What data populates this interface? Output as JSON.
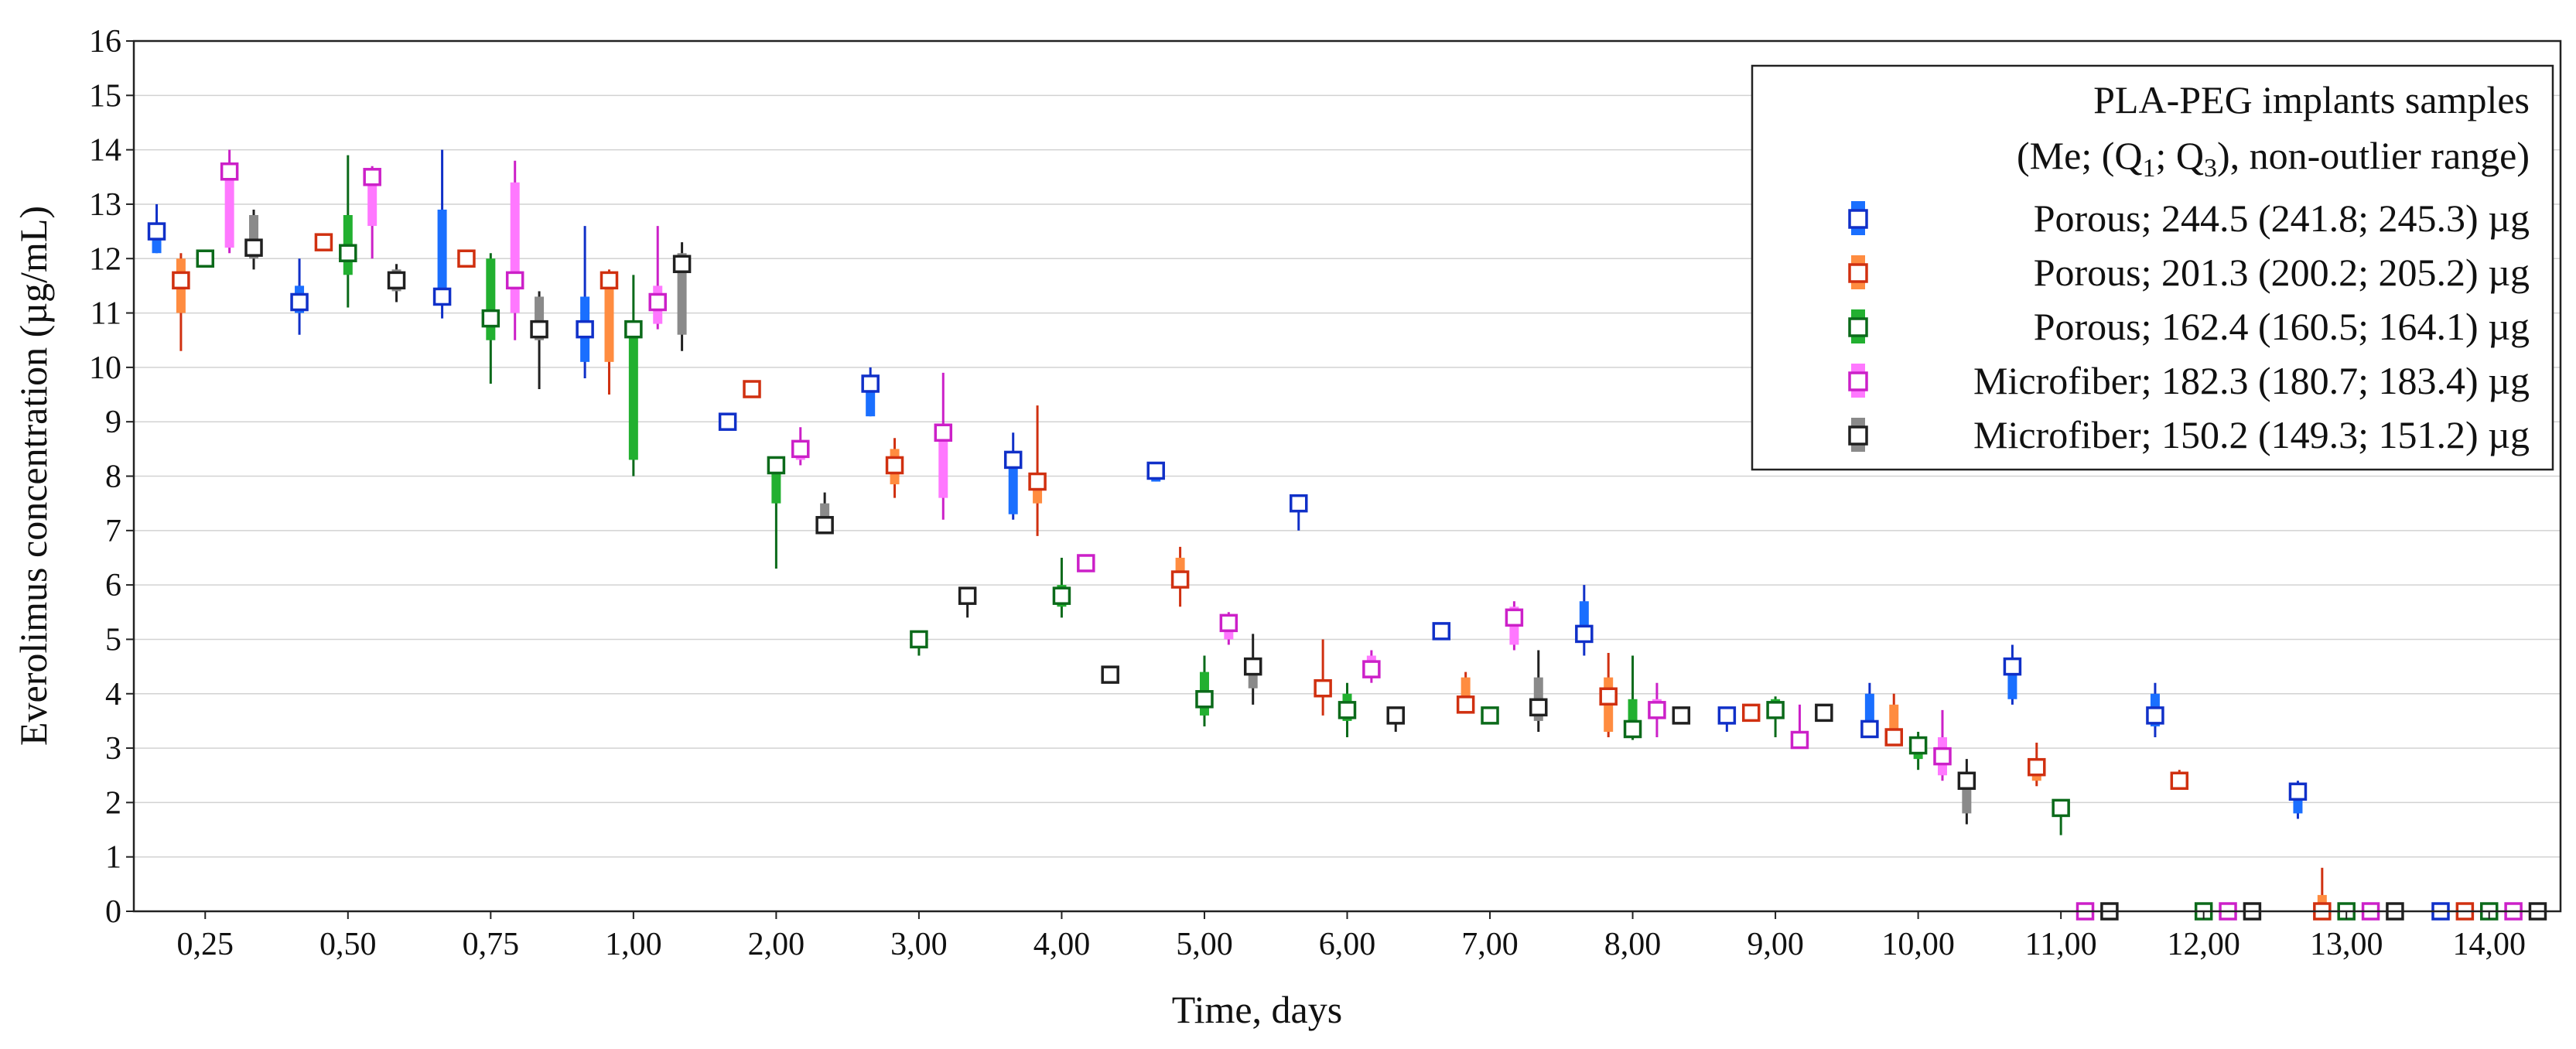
{
  "chart_data": {
    "type": "box",
    "title": "",
    "xlabel": "Time, days",
    "ylabel": "Everolimus concentration (µg/mL)",
    "ylim": [
      0,
      16
    ],
    "yticks": [
      0,
      1,
      2,
      3,
      4,
      5,
      6,
      7,
      8,
      9,
      10,
      11,
      12,
      13,
      14,
      15,
      16
    ],
    "grid": "horizontal",
    "categories": [
      "0,25",
      "0,50",
      "0,75",
      "1,00",
      "2,00",
      "3,00",
      "4,00",
      "5,00",
      "6,00",
      "7,00",
      "8,00",
      "9,00",
      "10,00",
      "11,00",
      "12,00",
      "13,00",
      "14,00"
    ],
    "legend": {
      "placement": "top-right",
      "title_line1": "PLA-PEG implants samples",
      "title_line2_prefix": "(Me; (Q",
      "title_line2_sub1": "1",
      "title_line2_mid": "; Q",
      "title_line2_sub2": "3",
      "title_line2_suffix": "), non-outlier range)"
    },
    "series": [
      {
        "name": "Porous; 244.5 (241.8; 245.3) µg",
        "edge": "#1030c8",
        "fill": "#1a6fff",
        "values": [
          [
            12.5,
            12.1,
            12.6,
            12.1,
            13.0
          ],
          [
            11.2,
            11.0,
            11.5,
            10.6,
            12.0
          ],
          [
            11.3,
            11.3,
            12.9,
            10.9,
            14.0
          ],
          [
            10.7,
            10.1,
            11.3,
            9.8,
            12.6
          ],
          [
            9.0,
            9.0,
            9.0,
            9.0,
            9.0
          ],
          [
            9.7,
            9.1,
            9.7,
            9.1,
            10.0
          ],
          [
            8.3,
            7.3,
            8.3,
            7.2,
            8.8
          ],
          [
            8.1,
            7.9,
            8.1,
            7.9,
            8.2
          ],
          [
            7.5,
            7.4,
            7.5,
            7.0,
            7.6
          ],
          [
            5.15,
            5.1,
            5.25,
            5.1,
            5.3
          ],
          [
            5.1,
            5.1,
            5.7,
            4.7,
            6.0
          ],
          [
            3.6,
            3.5,
            3.7,
            3.3,
            3.75
          ],
          [
            3.35,
            3.3,
            4.0,
            3.2,
            4.2
          ],
          [
            4.5,
            3.9,
            4.5,
            3.8,
            4.9
          ],
          [
            3.6,
            3.4,
            4.0,
            3.2,
            4.2
          ],
          [
            2.2,
            1.8,
            2.3,
            1.7,
            2.4
          ],
          [
            0,
            0,
            0,
            0,
            0
          ]
        ]
      },
      {
        "name": "Porous; 201.3 (200.2; 205.2) µg",
        "edge": "#d03010",
        "fill": "#ff8c40",
        "values": [
          [
            11.6,
            11.0,
            12.0,
            10.3,
            12.1
          ],
          [
            12.3,
            12.2,
            12.3,
            12.2,
            12.3
          ],
          [
            12.0,
            12.0,
            12.0,
            12.0,
            12.0
          ],
          [
            11.6,
            10.1,
            11.7,
            9.5,
            11.8
          ],
          [
            9.6,
            9.55,
            9.65,
            9.5,
            9.7
          ],
          [
            8.2,
            7.85,
            8.5,
            7.6,
            8.7
          ],
          [
            7.9,
            7.5,
            8.0,
            6.9,
            9.3
          ],
          [
            6.1,
            6.0,
            6.5,
            5.6,
            6.7
          ],
          [
            4.1,
            4.0,
            4.2,
            3.6,
            5.0
          ],
          [
            3.8,
            3.75,
            4.3,
            3.7,
            4.4
          ],
          [
            3.95,
            3.3,
            4.3,
            3.2,
            4.75
          ],
          [
            3.65,
            3.6,
            3.75,
            3.6,
            3.75
          ],
          [
            3.2,
            3.2,
            3.8,
            3.1,
            4.0
          ],
          [
            2.65,
            2.4,
            2.8,
            2.3,
            3.1
          ],
          [
            2.4,
            2.35,
            2.5,
            2.3,
            2.6
          ],
          [
            0,
            0,
            0.3,
            0,
            0.8
          ],
          [
            0,
            0,
            0,
            0,
            0
          ]
        ]
      },
      {
        "name": "Porous; 162.4 (160.5; 164.1) µg",
        "edge": "#0b6a1a",
        "fill": "#22b030",
        "values": [
          [
            12.0,
            12.0,
            12.05,
            12.0,
            12.1
          ],
          [
            12.1,
            11.7,
            12.8,
            11.1,
            13.9
          ],
          [
            10.9,
            10.5,
            12.0,
            9.7,
            12.1
          ],
          [
            10.7,
            8.3,
            10.7,
            8.0,
            11.7
          ],
          [
            8.2,
            7.5,
            8.3,
            6.3,
            8.3
          ],
          [
            5.0,
            4.85,
            5.0,
            4.7,
            5.1
          ],
          [
            5.8,
            5.6,
            6.0,
            5.4,
            6.5
          ],
          [
            3.9,
            3.6,
            4.4,
            3.4,
            4.7
          ],
          [
            3.7,
            3.5,
            4.0,
            3.2,
            4.2
          ],
          [
            3.6,
            3.55,
            3.7,
            3.5,
            3.7
          ],
          [
            3.35,
            3.3,
            3.9,
            3.15,
            4.7
          ],
          [
            3.7,
            3.6,
            3.9,
            3.2,
            3.95
          ],
          [
            3.05,
            2.8,
            3.2,
            2.6,
            3.3
          ],
          [
            1.9,
            1.85,
            2.0,
            1.4,
            2.0
          ],
          [
            0,
            0,
            0,
            0,
            0
          ],
          [
            0,
            0,
            0,
            0,
            0
          ],
          [
            0,
            0,
            0,
            0,
            0
          ]
        ]
      },
      {
        "name": "Microfiber; 182.3 (180.7; 183.4) µg",
        "edge": "#cc20c8",
        "fill": "#ff78ff",
        "values": [
          [
            13.6,
            12.2,
            13.7,
            12.1,
            14.0
          ],
          [
            13.5,
            12.6,
            13.6,
            12.0,
            13.7
          ],
          [
            11.6,
            11.0,
            13.4,
            10.5,
            13.8
          ],
          [
            11.2,
            10.8,
            11.5,
            10.7,
            12.6
          ],
          [
            8.5,
            8.3,
            8.6,
            8.2,
            8.9
          ],
          [
            8.8,
            7.6,
            8.8,
            7.2,
            9.9
          ],
          [
            6.4,
            6.4,
            6.4,
            6.4,
            6.4
          ],
          [
            5.3,
            5.0,
            5.4,
            4.9,
            5.5
          ],
          [
            4.45,
            4.3,
            4.7,
            4.2,
            4.8
          ],
          [
            5.4,
            4.9,
            5.6,
            4.8,
            5.7
          ],
          [
            3.7,
            3.6,
            3.9,
            3.2,
            4.2
          ],
          [
            3.15,
            3.1,
            3.3,
            3.05,
            3.8
          ],
          [
            2.85,
            2.5,
            3.2,
            2.4,
            3.7
          ],
          [
            0,
            0,
            0,
            0,
            0
          ],
          [
            0,
            0,
            0,
            0,
            0
          ],
          [
            0,
            0,
            0,
            0,
            0
          ],
          [
            0,
            0,
            0,
            0,
            0
          ]
        ]
      },
      {
        "name": "Microfiber; 150.2 (149.3; 151.2) µg",
        "edge": "#202020",
        "fill": "#8a8a8a",
        "values": [
          [
            12.2,
            12.0,
            12.8,
            11.8,
            12.9
          ],
          [
            11.6,
            11.4,
            11.8,
            11.2,
            11.9
          ],
          [
            10.7,
            10.5,
            11.3,
            9.6,
            11.4
          ],
          [
            11.9,
            10.6,
            12.1,
            10.3,
            12.3
          ],
          [
            7.1,
            7.05,
            7.5,
            7.0,
            7.7
          ],
          [
            5.8,
            5.7,
            5.9,
            5.4,
            5.9
          ],
          [
            4.35,
            4.3,
            4.4,
            4.3,
            4.4
          ],
          [
            4.5,
            4.1,
            4.6,
            3.8,
            5.1
          ],
          [
            3.6,
            3.45,
            3.65,
            3.3,
            3.7
          ],
          [
            3.75,
            3.5,
            4.3,
            3.3,
            4.8
          ],
          [
            3.6,
            3.55,
            3.65,
            3.55,
            3.65
          ],
          [
            3.65,
            3.6,
            3.7,
            3.6,
            3.7
          ],
          [
            2.4,
            1.8,
            2.5,
            1.6,
            2.8
          ],
          [
            0,
            0,
            0,
            0,
            0
          ],
          [
            0,
            0,
            0,
            0,
            0
          ],
          [
            0,
            0,
            0,
            0,
            0
          ],
          [
            0,
            0,
            0,
            0,
            0
          ]
        ]
      }
    ]
  }
}
